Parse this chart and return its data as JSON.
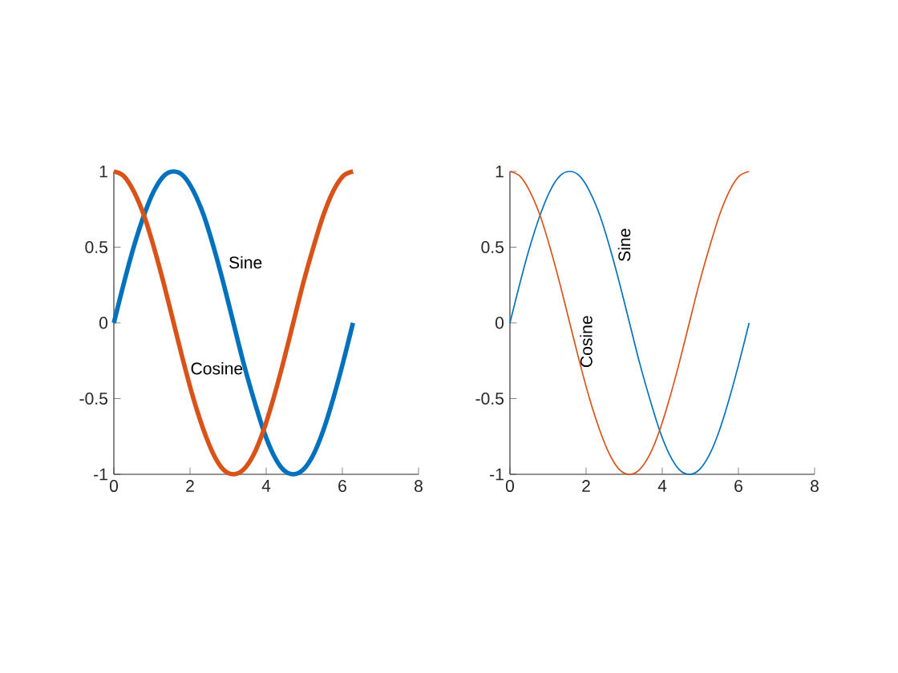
{
  "chart_data": [
    {
      "type": "line",
      "x": [
        0,
        0.26,
        0.52,
        0.79,
        1.05,
        1.31,
        1.57,
        1.83,
        2.09,
        2.36,
        2.62,
        2.88,
        3.14,
        3.4,
        3.67,
        3.93,
        4.19,
        4.45,
        4.71,
        4.97,
        5.24,
        5.5,
        5.76,
        6.02,
        6.28
      ],
      "series": [
        {
          "color": "#0072bd",
          "values": [
            0,
            0.26,
            0.5,
            0.71,
            0.87,
            0.97,
            1,
            0.97,
            0.87,
            0.71,
            0.5,
            0.26,
            0,
            -0.26,
            -0.5,
            -0.71,
            -0.87,
            -0.97,
            -1,
            -0.97,
            -0.87,
            -0.71,
            -0.5,
            -0.26,
            0
          ]
        },
        {
          "color": "#d95319",
          "values": [
            1,
            0.97,
            0.87,
            0.71,
            0.5,
            0.26,
            0,
            -0.26,
            -0.5,
            -0.71,
            -0.87,
            -0.97,
            -1,
            -0.97,
            -0.87,
            -0.71,
            -0.5,
            -0.26,
            0,
            0.26,
            0.5,
            0.71,
            0.87,
            0.97,
            1
          ]
        }
      ],
      "xlim": [
        0,
        8
      ],
      "ylim": [
        -1,
        1
      ],
      "xticks": [
        0,
        2,
        4,
        6,
        8
      ],
      "yticks": [
        -1,
        -0.5,
        0,
        0.5,
        1
      ],
      "annotations": [
        "Sine",
        "Cosine"
      ]
    },
    {
      "type": "line",
      "x": [
        0,
        0.26,
        0.52,
        0.79,
        1.05,
        1.31,
        1.57,
        1.83,
        2.09,
        2.36,
        2.62,
        2.88,
        3.14,
        3.4,
        3.67,
        3.93,
        4.19,
        4.45,
        4.71,
        4.97,
        5.24,
        5.5,
        5.76,
        6.02,
        6.28
      ],
      "series": [
        {
          "color": "#0072bd",
          "values": [
            0,
            0.26,
            0.5,
            0.71,
            0.87,
            0.97,
            1,
            0.97,
            0.87,
            0.71,
            0.5,
            0.26,
            0,
            -0.26,
            -0.5,
            -0.71,
            -0.87,
            -0.97,
            -1,
            -0.97,
            -0.87,
            -0.71,
            -0.5,
            -0.26,
            0
          ]
        },
        {
          "color": "#d95319",
          "values": [
            1,
            0.97,
            0.87,
            0.71,
            0.5,
            0.26,
            0,
            -0.26,
            -0.5,
            -0.71,
            -0.87,
            -0.97,
            -1,
            -0.97,
            -0.87,
            -0.71,
            -0.5,
            -0.26,
            0,
            0.26,
            0.5,
            0.71,
            0.87,
            0.97,
            1
          ]
        }
      ],
      "xlim": [
        0,
        8
      ],
      "ylim": [
        -1,
        1
      ],
      "xticks": [
        0,
        2,
        4,
        6,
        8
      ],
      "yticks": [
        -1,
        -0.5,
        0,
        0.5,
        1
      ],
      "annotations": [
        "Sine",
        "Cosine"
      ]
    }
  ]
}
